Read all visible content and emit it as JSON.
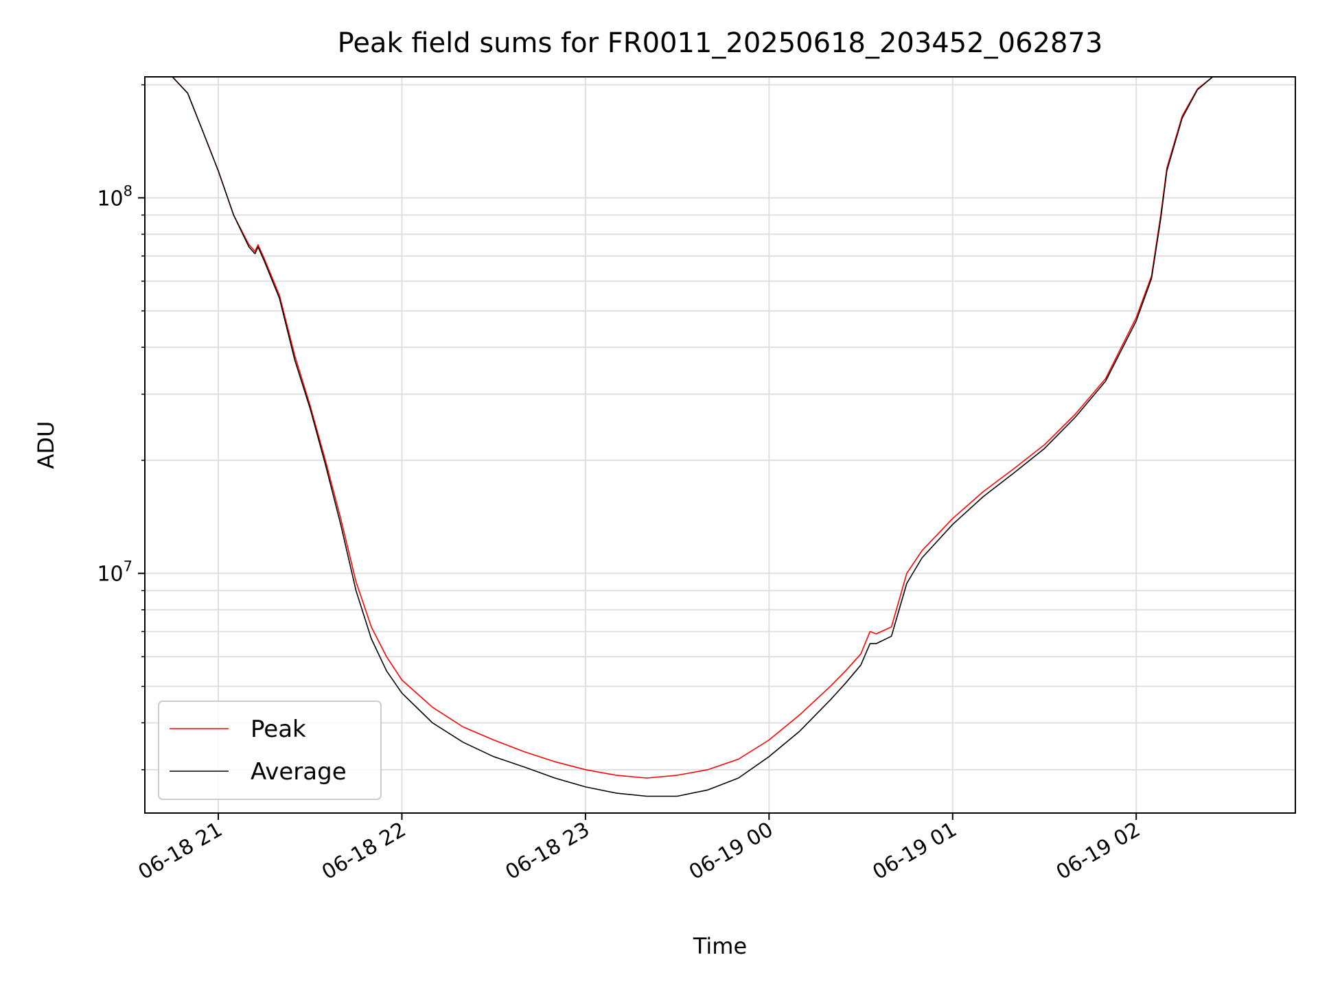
{
  "chart_data": {
    "type": "line",
    "title": "Peak field sums for FR0011_20250618_203452_062873",
    "xlabel": "Time",
    "ylabel": "ADU",
    "yscale": "log",
    "ylim": [
      2300000,
      210000000
    ],
    "xlim": [
      "2025-06-18 20:36",
      "2025-06-19 02:52"
    ],
    "xticks": [
      {
        "t": "2025-06-18 21:00",
        "label": "06-18 21"
      },
      {
        "t": "2025-06-18 22:00",
        "label": "06-18 22"
      },
      {
        "t": "2025-06-18 23:00",
        "label": "06-18 23"
      },
      {
        "t": "2025-06-19 00:00",
        "label": "06-19 00"
      },
      {
        "t": "2025-06-19 01:00",
        "label": "06-19 01"
      },
      {
        "t": "2025-06-19 02:00",
        "label": "06-19 02"
      }
    ],
    "yticks": [
      {
        "value": 10000000,
        "base": "10",
        "exp": "7"
      },
      {
        "value": 100000000,
        "base": "10",
        "exp": "8"
      }
    ],
    "grid": true,
    "legend": {
      "location": "lower left",
      "entries": [
        "Peak",
        "Average"
      ]
    },
    "series": [
      {
        "name": "Peak",
        "color": "#ff0000",
        "x": [
          "2025-06-18 20:45",
          "2025-06-18 20:50",
          "2025-06-18 20:55",
          "2025-06-18 21:00",
          "2025-06-18 21:05",
          "2025-06-18 21:10",
          "2025-06-18 21:12",
          "2025-06-18 21:13",
          "2025-06-18 21:15",
          "2025-06-18 21:20",
          "2025-06-18 21:25",
          "2025-06-18 21:30",
          "2025-06-18 21:35",
          "2025-06-18 21:40",
          "2025-06-18 21:45",
          "2025-06-18 21:50",
          "2025-06-18 21:55",
          "2025-06-18 22:00",
          "2025-06-18 22:10",
          "2025-06-18 22:20",
          "2025-06-18 22:30",
          "2025-06-18 22:40",
          "2025-06-18 22:50",
          "2025-06-18 23:00",
          "2025-06-18 23:10",
          "2025-06-18 23:20",
          "2025-06-18 23:30",
          "2025-06-18 23:40",
          "2025-06-18 23:50",
          "2025-06-19 00:00",
          "2025-06-19 00:10",
          "2025-06-19 00:20",
          "2025-06-19 00:25",
          "2025-06-19 00:30",
          "2025-06-19 00:33",
          "2025-06-19 00:35",
          "2025-06-19 00:40",
          "2025-06-19 00:45",
          "2025-06-19 00:50",
          "2025-06-19 01:00",
          "2025-06-19 01:10",
          "2025-06-19 01:20",
          "2025-06-19 01:30",
          "2025-06-19 01:40",
          "2025-06-19 01:50",
          "2025-06-19 02:00",
          "2025-06-19 02:05",
          "2025-06-19 02:08",
          "2025-06-19 02:10",
          "2025-06-19 02:15",
          "2025-06-19 02:20",
          "2025-06-19 02:25",
          "2025-06-19 02:30"
        ],
        "values": [
          210000000,
          190000000,
          150000000,
          118000000,
          90000000,
          75000000,
          72000000,
          75000000,
          69000000,
          55000000,
          38000000,
          28000000,
          20000000,
          14000000,
          9500000,
          7200000,
          6000000,
          5200000,
          4400000,
          3900000,
          3600000,
          3350000,
          3150000,
          3000000,
          2900000,
          2850000,
          2900000,
          3000000,
          3200000,
          3600000,
          4200000,
          5000000,
          5500000,
          6100000,
          7000000,
          6900000,
          7200000,
          10000000,
          11500000,
          14000000,
          16500000,
          19000000,
          22000000,
          26500000,
          33000000,
          48000000,
          62000000,
          90000000,
          120000000,
          165000000,
          195000000,
          210000000,
          210000000
        ]
      },
      {
        "name": "Average",
        "color": "#000000",
        "x": [
          "2025-06-18 20:45",
          "2025-06-18 20:50",
          "2025-06-18 20:55",
          "2025-06-18 21:00",
          "2025-06-18 21:05",
          "2025-06-18 21:10",
          "2025-06-18 21:12",
          "2025-06-18 21:13",
          "2025-06-18 21:15",
          "2025-06-18 21:20",
          "2025-06-18 21:25",
          "2025-06-18 21:30",
          "2025-06-18 21:35",
          "2025-06-18 21:40",
          "2025-06-18 21:45",
          "2025-06-18 21:50",
          "2025-06-18 21:55",
          "2025-06-18 22:00",
          "2025-06-18 22:10",
          "2025-06-18 22:20",
          "2025-06-18 22:30",
          "2025-06-18 22:40",
          "2025-06-18 22:50",
          "2025-06-18 23:00",
          "2025-06-18 23:10",
          "2025-06-18 23:20",
          "2025-06-18 23:30",
          "2025-06-18 23:40",
          "2025-06-18 23:50",
          "2025-06-19 00:00",
          "2025-06-19 00:10",
          "2025-06-19 00:20",
          "2025-06-19 00:25",
          "2025-06-19 00:30",
          "2025-06-19 00:33",
          "2025-06-19 00:35",
          "2025-06-19 00:40",
          "2025-06-19 00:45",
          "2025-06-19 00:50",
          "2025-06-19 01:00",
          "2025-06-19 01:10",
          "2025-06-19 01:20",
          "2025-06-19 01:30",
          "2025-06-19 01:40",
          "2025-06-19 01:50",
          "2025-06-19 02:00",
          "2025-06-19 02:05",
          "2025-06-19 02:08",
          "2025-06-19 02:10",
          "2025-06-19 02:15",
          "2025-06-19 02:20",
          "2025-06-19 02:25",
          "2025-06-19 02:30"
        ],
        "values": [
          210000000,
          190000000,
          150000000,
          118000000,
          90000000,
          74000000,
          71000000,
          74000000,
          68000000,
          54000000,
          37000000,
          27500000,
          19500000,
          13500000,
          9000000,
          6700000,
          5500000,
          4800000,
          4000000,
          3550000,
          3250000,
          3050000,
          2850000,
          2700000,
          2600000,
          2550000,
          2550000,
          2650000,
          2850000,
          3250000,
          3800000,
          4600000,
          5100000,
          5700000,
          6500000,
          6500000,
          6800000,
          9400000,
          11000000,
          13500000,
          16000000,
          18500000,
          21500000,
          26000000,
          32500000,
          47000000,
          61000000,
          88000000,
          118000000,
          163000000,
          194000000,
          210000000,
          210000000
        ]
      }
    ]
  }
}
